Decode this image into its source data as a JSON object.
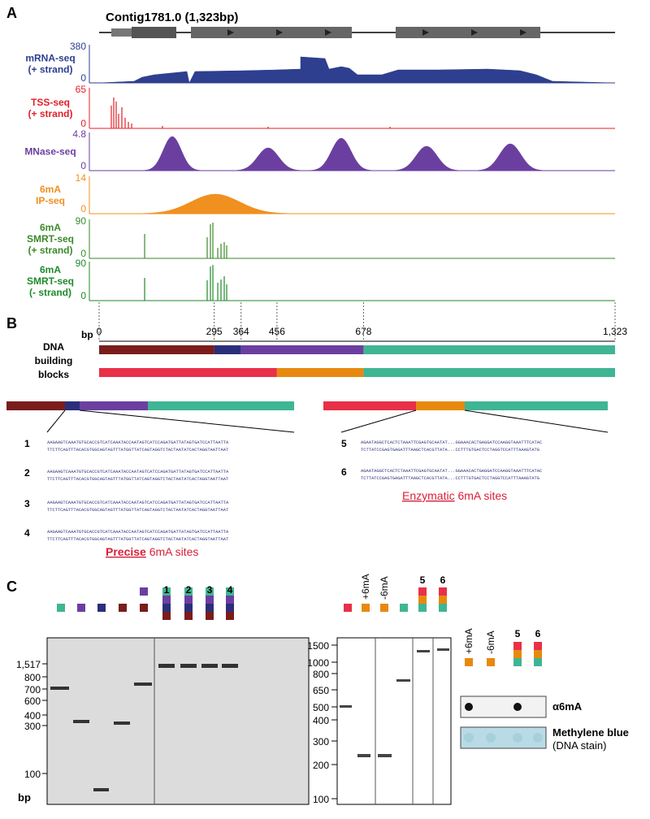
{
  "panel_a": {
    "label": "A",
    "title": "Contig1781.0  (1,323bp)",
    "tracks": [
      {
        "name": [
          "mRNA-seq",
          "(+ strand)"
        ],
        "max": 380,
        "min": 0
      },
      {
        "name": [
          "TSS-seq",
          "(+ strand)"
        ],
        "max": 65,
        "min": 0
      },
      {
        "name": [
          "MNase-seq"
        ],
        "max": 4.8,
        "min": 0
      },
      {
        "name": [
          "6mA",
          "IP-seq"
        ],
        "max": 14,
        "min": 0
      },
      {
        "name": [
          "6mA",
          "SMRT-seq",
          "(+ strand)"
        ],
        "max": 90,
        "min": 0
      },
      {
        "name": [
          "6mA",
          "SMRT-seq",
          "(- strand)"
        ],
        "max": 90,
        "min": 0
      }
    ]
  },
  "panel_b": {
    "label": "B",
    "unit": "bp",
    "coordinates": [
      0,
      295,
      364,
      456,
      678,
      {
        "value": 1323,
        "label": "1,323"
      }
    ],
    "blocks_label": [
      "DNA",
      "building",
      "blocks"
    ],
    "left_constructs": [
      {
        "id": "1",
        "top": "AAGAAGTCAAATGTGCACCGTCATCAAATACCAATAGTCATCCAGATGATTATAGTGATCCATTAATTA",
        "bottom": "TTCTTCAGTTTACACGTGGCAGTAGTTTATGGTTATCAGTAGGTCTACTAATATCACTAGGTAATTAAT"
      },
      {
        "id": "2",
        "top": "AAGAAGTCAAATGTGCACCGTCATCAAATACCAATAGTCATCCAGATGATTATAGTGATCCATTAATTA",
        "bottom": "TTCTTCAGTTTACACGTGGCAGTAGTTTATGGTTATCAGTAGGTCTACTAATATCACTAGGTAATTAAT"
      },
      {
        "id": "3",
        "top": "AAGAAGTCAAATGTGCACCGTCATCAAATACCAATAGTCATCCAGATGATTATAGTGATCCATTAATTA",
        "bottom": "TTCTTCAGTTTACACGTGGCAGTAGTTTATGGTTATCAGTAGGTCTACTAATATCACTAGGTAATTAAT"
      },
      {
        "id": "4",
        "top": "AAGAAGTCAAATGTGCACCGTCATCAAATACCAATAGTCATCCAGATGATTATAGTGATCCATTAATTA",
        "bottom": "TTCTTCAGTTTACACGTGGCAGTAGTTTATGGTTATCAGTAGGTCTACTAATATCACTAGGTAATTAAT"
      }
    ],
    "left_caption": {
      "emphasis": "Precise",
      "rest": "6mA sites"
    },
    "right_constructs": [
      {
        "id": "5",
        "top": "AGAATAGGCTCACTCTAAATTCGAGTGCAATAT...GGAAACACTGAGGATCCAAGGTAAATTTCATAC",
        "bottom": "TCTTATCCGAGTGAGATTTAAGCTCACGTTATA...CCTTTGTGACTCCTAGGTCCATTTAAAGTATG"
      },
      {
        "id": "6",
        "top": "AGAATAGGCTCACTCTAAATTCGAGTGCAATAT...GGAAACACTGAGGATCCAAGGTAAATTTCATAC",
        "bottom": "TCTTATCCGAGTGAGATTTAAGCTCACGTTATA...CCTTTGTGACTCCTAGGTCCATTTAAAGTATG"
      }
    ],
    "right_caption": {
      "emphasis": "Enzymatic",
      "rest": "6mA sites"
    }
  },
  "panel_c": {
    "label": "C",
    "left_gel": {
      "lanes": [
        "1",
        "2",
        "3",
        "4"
      ],
      "ladder": [
        "1,517",
        "800",
        "700",
        "600",
        "400",
        "300",
        "100"
      ],
      "unit": "bp"
    },
    "right_gel": {
      "lanes": [
        "+6mA",
        "-6mA",
        "5",
        "6"
      ],
      "ladder": [
        "1500",
        "1000",
        "800",
        "650",
        "500",
        "400",
        "300",
        "200",
        "100"
      ]
    },
    "dot_blot": {
      "lanes": [
        "+6mA",
        "-6mA",
        "5",
        "6"
      ],
      "antibody": "α6mA",
      "stain": "Methylene blue",
      "stain_note": "(DNA stain)"
    }
  }
}
